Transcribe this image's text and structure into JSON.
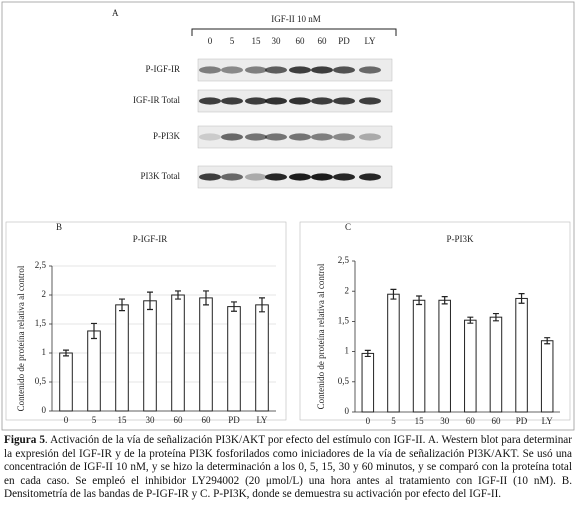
{
  "panel_a": {
    "label": "A",
    "treatment": "IGF-II 10 nM",
    "lanes": [
      "0",
      "5",
      "15",
      "30",
      "60",
      "60",
      "PD",
      "LY"
    ],
    "rows": [
      "P-IGF-IR",
      "IGF-IR Total",
      "P-PI3K",
      "PI3K Total"
    ]
  },
  "chart_data": [
    {
      "type": "bar",
      "panel": "B",
      "title": "P-IGF-IR",
      "y_label": "Contenido de proteína relativa al control",
      "categories": [
        "0",
        "5",
        "15",
        "30",
        "60",
        "60",
        "PD",
        "LY"
      ],
      "values": [
        1.0,
        1.38,
        1.83,
        1.9,
        2.0,
        1.95,
        1.8,
        1.83
      ],
      "errors": [
        0.05,
        0.13,
        0.1,
        0.15,
        0.07,
        0.12,
        0.08,
        0.12
      ],
      "color": "#ffffff",
      "ylim": [
        0,
        2.5
      ],
      "yticks": [
        0,
        {
          "value": 0.5,
          "label": "0,5"
        },
        1,
        {
          "value": 1.5,
          "label": "1,5"
        },
        2,
        {
          "value": 2.5,
          "label": "2,5"
        }
      ],
      "grid": true
    },
    {
      "type": "bar",
      "panel": "C",
      "title": "P-PI3K",
      "y_label": "Contenido de proteína relativa al control",
      "categories": [
        "0",
        "5",
        "15",
        "30",
        "60",
        "60",
        "PD",
        "LY"
      ],
      "values": [
        0.97,
        1.95,
        1.85,
        1.85,
        1.52,
        1.57,
        1.88,
        1.18
      ],
      "errors": [
        0.05,
        0.08,
        0.07,
        0.06,
        0.05,
        0.06,
        0.08,
        0.05
      ],
      "color": "#ffffff",
      "ylim": [
        0,
        2.5
      ],
      "yticks": [
        0,
        {
          "value": 0.5,
          "label": "0,5"
        },
        1,
        {
          "value": 1.5,
          "label": "1,5"
        },
        2,
        {
          "value": 2.5,
          "label": "2,5"
        }
      ],
      "grid": false
    }
  ],
  "caption": {
    "label": "Figura 5",
    "text": ". Activación de la vía de señalización PI3K/AKT por efecto del estímulo con IGF-II. A. Western blot para determinar la expresión del IGF-IR y de la proteína PI3K fosforilados como iniciadores de la vía de señalización PI3K/AKT. Se usó una concentración de IGF-II 10 nM, y se hizo la determinación a los 0, 5, 15, 30 y 60 minutos, y se comparó con la proteína total en cada caso. Se empleó el inhibidor LY294002 (20 μmol/L) una hora antes al tratamiento con IGF-II (10 nM). B. Densitometría de las bandas de P-IGF-IR y C. P-PI3K, donde se demuestra su activación por efecto del IGF-II."
  }
}
